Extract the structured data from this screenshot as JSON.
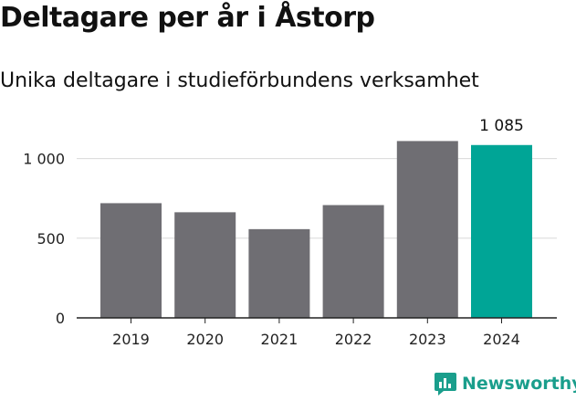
{
  "header": {
    "title": "Deltagare per år i Åstorp",
    "subtitle": "Unika deltagare i studieförbundens verksamhet"
  },
  "brand": {
    "name": "Newsworthy",
    "logo_icon": "newsworthy-chart-icon",
    "color": "#1a9e8c"
  },
  "chart_data": {
    "type": "bar",
    "categories": [
      "2019",
      "2020",
      "2021",
      "2022",
      "2023",
      "2024"
    ],
    "values": [
      720,
      663,
      557,
      708,
      1110,
      1085
    ],
    "ylim": [
      0,
      1250
    ],
    "yticks": [
      {
        "value": 0,
        "label": "0"
      },
      {
        "value": 500,
        "label": "500"
      },
      {
        "value": 1000,
        "label": "1 000"
      }
    ],
    "grid": true,
    "bar_color": "#6f6e73",
    "highlight_color": "#00a596",
    "highlight_index": 5,
    "annotation": {
      "index": 5,
      "label": "1 085"
    }
  }
}
